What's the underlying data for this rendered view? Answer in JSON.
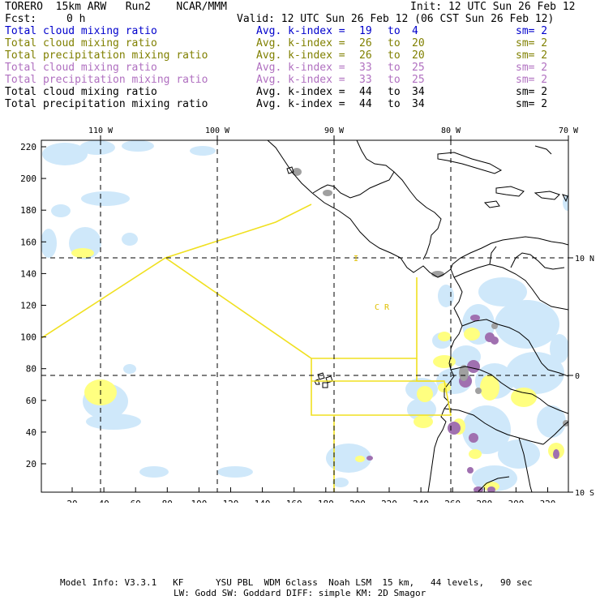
{
  "header": {
    "model": "TORERO  15km ARW   Run2    NCAR/MMM",
    "init": "Init: 12 UTC Sun 26 Feb 12",
    "fcst_label": "Fcst:",
    "fcst_value": "0 h",
    "valid": "Valid: 12 UTC Sun 26 Feb 12 (06 CST Sun 26 Feb 12)"
  },
  "legend_rows": [
    {
      "label": "Total cloud mixing ratio",
      "kidx": "Avg. k-index =",
      "a": "19",
      "to": "to",
      "b": "4",
      "sm": "sm= 2",
      "color": "#0000cc"
    },
    {
      "label": "Total cloud mixing ratio",
      "kidx": "Avg. k-index =",
      "a": "26",
      "to": "to",
      "b": "20",
      "sm": "sm= 2",
      "color": "#808000"
    },
    {
      "label": "Total precipitation mixing ratio",
      "kidx": "Avg. k-index =",
      "a": "26",
      "to": "to",
      "b": "20",
      "sm": "sm= 2",
      "color": "#808000"
    },
    {
      "label": "Total cloud mixing ratio",
      "kidx": "Avg. k-index =",
      "a": "33",
      "to": "to",
      "b": "25",
      "sm": "sm= 2",
      "color": "#b070c0"
    },
    {
      "label": "Total precipitation mixing ratio",
      "kidx": "Avg. k-index =",
      "a": "33",
      "to": "to",
      "b": "25",
      "sm": "sm= 2",
      "color": "#b070c0"
    },
    {
      "label": "Total cloud mixing ratio",
      "kidx": "Avg. k-index =",
      "a": "44",
      "to": "to",
      "b": "34",
      "sm": "sm= 2",
      "color": "#000000"
    },
    {
      "label": "Total precipitation mixing ratio",
      "kidx": "Avg. k-index =",
      "a": "44",
      "to": "to",
      "b": "34",
      "sm": "sm= 2",
      "color": "#000000"
    }
  ],
  "map": {
    "top_lon_labels": [
      "110 W",
      "100 W",
      "90 W",
      "80 W",
      "70 W"
    ],
    "right_lat_labels": [
      "10 N",
      "0",
      "10 S"
    ],
    "left_ticks": [
      "220",
      "200",
      "180",
      "160",
      "140",
      "120",
      "100",
      "80",
      "60",
      "40",
      "20"
    ],
    "bottom_ticks": [
      "20",
      "40",
      "60",
      "80",
      "100",
      "120",
      "140",
      "160",
      "180",
      "200",
      "220",
      "240",
      "260",
      "280",
      "300",
      "320"
    ],
    "region_label": "C R",
    "region_tick_label": "I",
    "colors": {
      "cloud_light": "#cfe8fa",
      "yellow": "#ffff80",
      "purple": "#a070b0",
      "gray": "#a0a0a0",
      "track": "#f0e020",
      "grid": "#000000",
      "coast": "#000000"
    }
  },
  "footer": {
    "line1": "Model Info: V3.3.1   KF      YSU PBL  WDM 6class  Noah LSM  15 km,   44 levels,   90 sec",
    "line2": "LW: Godd SW: Goddard DIFF: simple KM: 2D Smagor"
  }
}
